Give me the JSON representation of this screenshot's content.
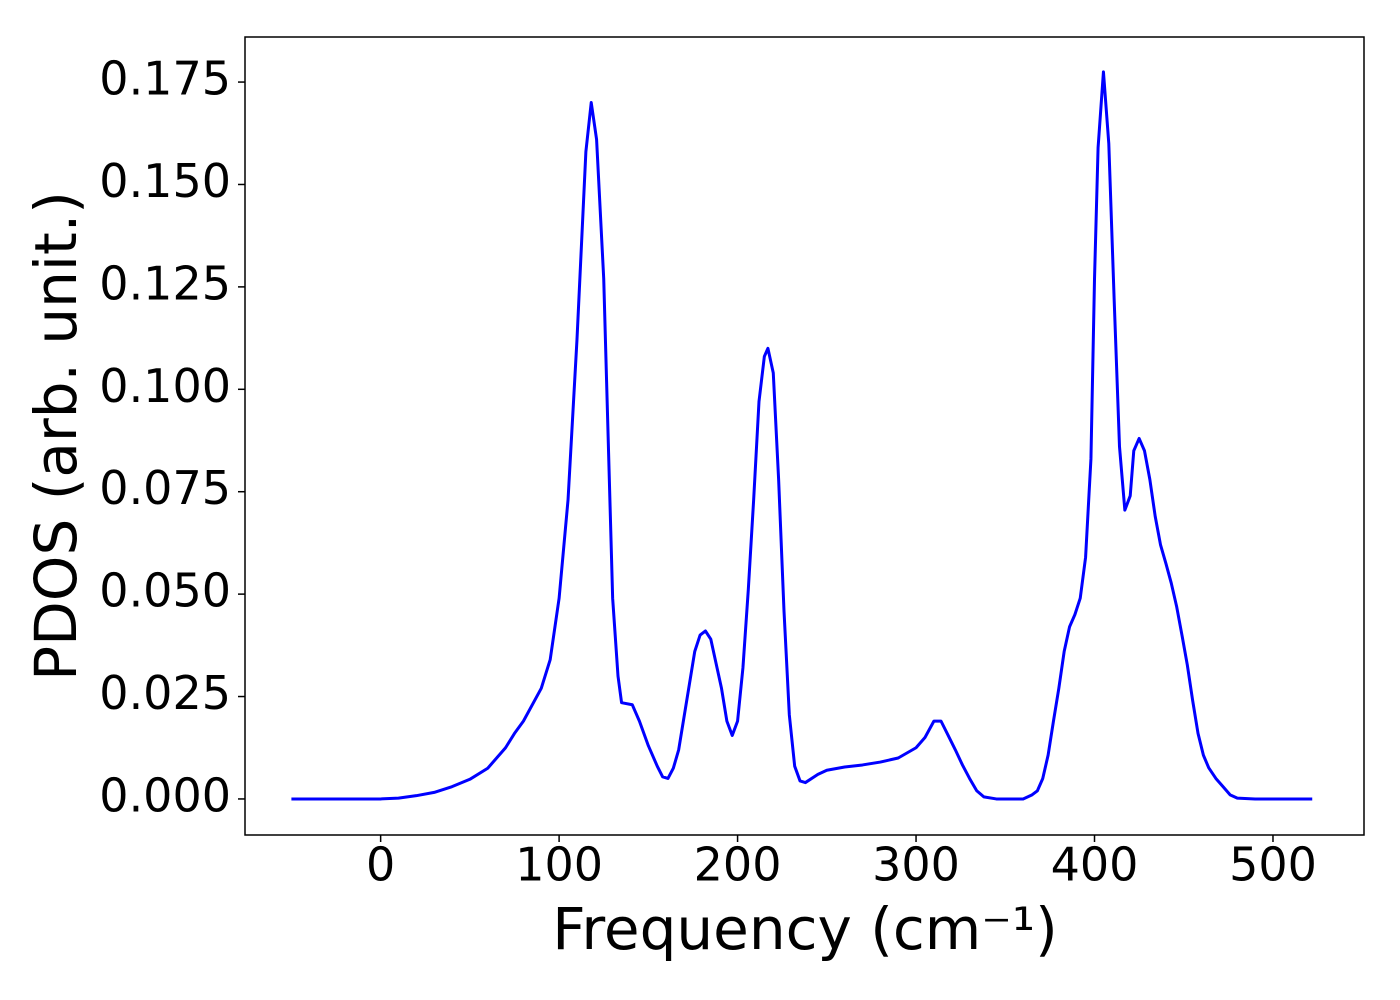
{
  "chart_data": {
    "type": "line",
    "x_label": "Frequency (cm⁻¹)",
    "y_label": "PDOS (arb. unit.)",
    "x": [
      -50,
      0,
      10,
      20,
      30,
      40,
      50,
      60,
      70,
      75,
      80,
      90,
      95,
      100,
      105,
      110,
      115,
      118,
      121,
      125,
      130,
      133,
      135,
      141,
      145,
      150,
      155,
      158,
      161,
      164,
      167,
      170,
      173,
      176,
      179,
      182,
      185,
      188,
      191,
      194,
      197,
      200,
      203,
      206,
      209,
      212,
      215,
      217,
      220,
      223,
      226,
      229,
      232,
      235,
      238,
      245,
      250,
      260,
      270,
      280,
      290,
      300,
      305,
      310,
      314,
      318,
      322,
      326,
      330,
      334,
      338,
      345,
      360,
      365,
      368,
      371,
      374,
      377,
      380,
      383,
      386,
      389,
      392,
      395,
      398,
      400,
      402,
      405,
      408,
      411,
      414,
      417,
      420,
      422,
      425,
      428,
      431,
      434,
      437,
      440,
      443,
      446,
      449,
      452,
      455,
      458,
      461,
      464,
      468,
      472,
      476,
      480,
      490,
      522
    ],
    "series": [
      {
        "color": "#0000ff",
        "values": [
          0,
          0,
          0.0002,
          0.0008,
          0.0016,
          0.003,
          0.0048,
          0.0075,
          0.0125,
          0.016,
          0.019,
          0.027,
          0.034,
          0.049,
          0.073,
          0.112,
          0.158,
          0.17,
          0.161,
          0.127,
          0.049,
          0.03,
          0.0235,
          0.023,
          0.019,
          0.013,
          0.008,
          0.0054,
          0.005,
          0.0075,
          0.012,
          0.02,
          0.028,
          0.036,
          0.04,
          0.041,
          0.039,
          0.033,
          0.027,
          0.019,
          0.0155,
          0.019,
          0.032,
          0.051,
          0.073,
          0.097,
          0.108,
          0.11,
          0.104,
          0.078,
          0.046,
          0.0205,
          0.008,
          0.0044,
          0.004,
          0.006,
          0.007,
          0.0078,
          0.0083,
          0.009,
          0.01,
          0.0125,
          0.015,
          0.019,
          0.019,
          0.0155,
          0.012,
          0.0083,
          0.005,
          0.002,
          0.0005,
          0,
          0,
          0.001,
          0.002,
          0.005,
          0.0107,
          0.019,
          0.027,
          0.036,
          0.042,
          0.045,
          0.049,
          0.059,
          0.083,
          0.127,
          0.159,
          0.1775,
          0.16,
          0.122,
          0.086,
          0.0705,
          0.074,
          0.085,
          0.088,
          0.085,
          0.078,
          0.069,
          0.062,
          0.0575,
          0.0527,
          0.047,
          0.04,
          0.0327,
          0.024,
          0.016,
          0.0107,
          0.0076,
          0.005,
          0.003,
          0.001,
          0.0002,
          0,
          0
        ]
      }
    ],
    "xlim": [
      -76,
      551
    ],
    "ylim": [
      -0.0088,
      0.186
    ],
    "xticks": [
      0,
      100,
      200,
      300,
      400,
      500
    ],
    "yticks": [
      {
        "value": 0,
        "label": "0.000"
      },
      {
        "value": 0.025,
        "label": "0.025"
      },
      {
        "value": 0.05,
        "label": "0.050"
      },
      {
        "value": 0.075,
        "label": "0.075"
      },
      {
        "value": 0.1,
        "label": "0.100"
      },
      {
        "value": 0.125,
        "label": "0.125"
      },
      {
        "value": 0.15,
        "label": "0.150"
      },
      {
        "value": 0.175,
        "label": "0.175"
      }
    ]
  }
}
